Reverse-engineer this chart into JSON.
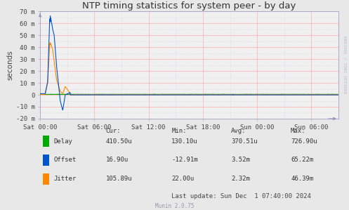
{
  "title": "NTP timing statistics for system peer - by day",
  "ylabel": "seconds",
  "background_color": "#e8e8e8",
  "plot_bg_color": "#f0f0f0",
  "grid_color_major": "#ffaaaa",
  "grid_color_minor": "#ccccdd",
  "ylim": [
    -0.02,
    0.07
  ],
  "yticks_vals": [
    -0.02,
    -0.01,
    0.0,
    0.01,
    0.02,
    0.03,
    0.04,
    0.05,
    0.06,
    0.07
  ],
  "ytick_labels": [
    "-20 m",
    "-10 m",
    "0",
    "10 m",
    "20 m",
    "30 m",
    "40 m",
    "50 m",
    "60 m",
    "70 m"
  ],
  "xtick_vals": [
    0,
    21600,
    43200,
    64800,
    86400,
    108000
  ],
  "xtick_labels": [
    "Sat 00:00",
    "Sat 06:00",
    "Sat 12:00",
    "Sat 18:00",
    "Sun 00:00",
    "Sun 06:00"
  ],
  "xmin": 0,
  "xmax": 118800,
  "colors": {
    "delay": "#00aa00",
    "offset": "#0055cc",
    "jitter": "#ff8800"
  },
  "legend": [
    {
      "label": "Delay",
      "color": "#00aa00"
    },
    {
      "label": "Offset",
      "color": "#0055cc"
    },
    {
      "label": "Jitter",
      "color": "#ff8800"
    }
  ],
  "stats_header": [
    "Cur:",
    "Min:",
    "Avg:",
    "Max:"
  ],
  "stats_delay": [
    "410.50u",
    "130.10u",
    "370.51u",
    "726.90u"
  ],
  "stats_offset": [
    "16.90u",
    "-12.91m",
    "3.52m",
    "65.22m"
  ],
  "stats_jitter": [
    "105.89u",
    "22.00u",
    "2.32m",
    "46.39m"
  ],
  "last_update": "Last update: Sun Dec  1 07:40:00 2024",
  "munin_version": "Munin 2.0.75",
  "right_label": "RRDTOOL / TOBI OETIKER"
}
